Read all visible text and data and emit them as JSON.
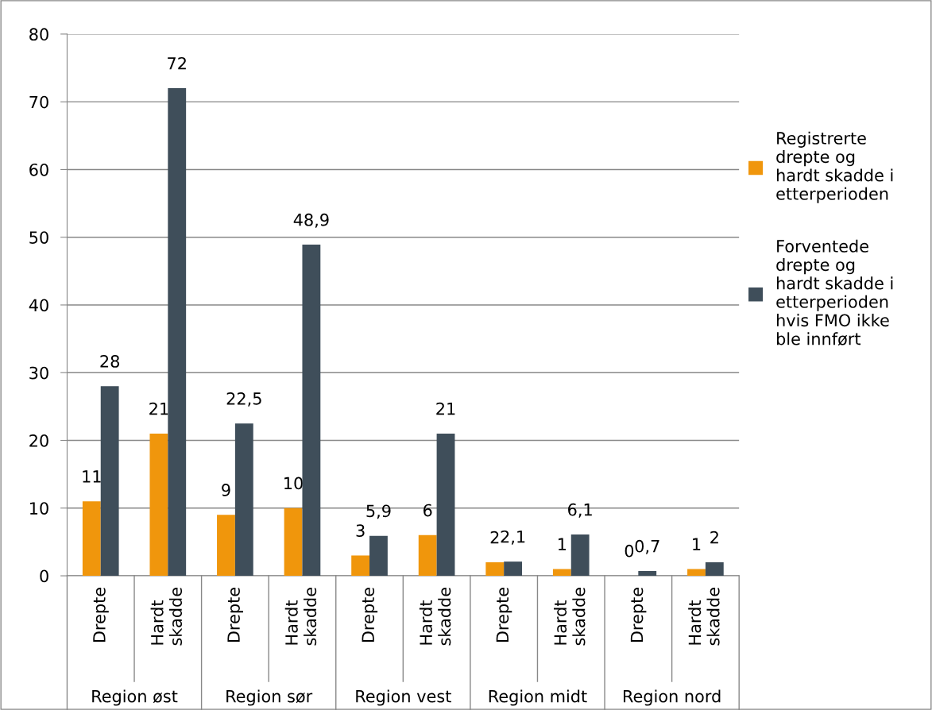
{
  "chart_data": {
    "type": "bar",
    "categories": [
      "Drepte",
      "Hardt\nskadde",
      "Drepte",
      "Hardt\nskadde",
      "Drepte",
      "Hardt\nskadde",
      "Drepte",
      "Hardt\nskadde",
      "Drepte",
      "Hardt\nskadde"
    ],
    "annotations": [
      "Region øst",
      "Region sør",
      "Region vest",
      "Region midt",
      "Region nord"
    ],
    "series": [
      {
        "name": "Registrerte\ndrepte og\nhardt skadde i\netterperioden",
        "color": "#f0960c",
        "values": [
          11,
          21,
          9,
          10,
          3,
          6,
          2,
          1,
          0,
          1
        ],
        "value_labels": [
          "11",
          "21",
          "9",
          "10",
          "3",
          "6",
          "2",
          "1",
          "0",
          "1"
        ]
      },
      {
        "name": "Forventede\ndrepte og\nhardt skadde i\netterperioden\nhvis FMO ikke\nble innført",
        "color": "#3f4e5a",
        "values": [
          28,
          72,
          22.5,
          48.9,
          5.9,
          21,
          2.1,
          6.1,
          0.7,
          2
        ],
        "value_labels": [
          "28",
          "72",
          "22,5",
          "48,9",
          "5,9",
          "21",
          "2,1",
          "6,1",
          "0,7",
          "2"
        ]
      }
    ],
    "ylim": [
      0,
      80
    ],
    "yticks": [
      0,
      10,
      20,
      30,
      40,
      50,
      60,
      70,
      80
    ],
    "grid": "y",
    "legend": "right"
  }
}
